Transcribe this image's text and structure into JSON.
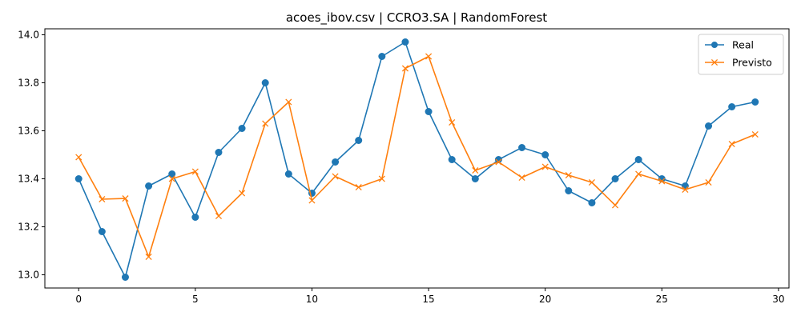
{
  "chart_data": {
    "type": "line",
    "title": "acoes_ibov.csv | CCRO3.SA | RandomForest",
    "xlabel": "",
    "ylabel": "",
    "x": [
      0,
      1,
      2,
      3,
      4,
      5,
      6,
      7,
      8,
      9,
      10,
      11,
      12,
      13,
      14,
      15,
      16,
      17,
      18,
      19,
      20,
      21,
      22,
      23,
      24,
      25,
      26,
      27,
      28,
      29
    ],
    "xlim": [
      -1.45,
      30.45
    ],
    "ylim": [
      12.945,
      14.025
    ],
    "xticks": [
      0,
      5,
      10,
      15,
      20,
      25,
      30
    ],
    "yticks": [
      13.0,
      13.2,
      13.4,
      13.6,
      13.8,
      14.0
    ],
    "xtick_labels": [
      "0",
      "5",
      "10",
      "15",
      "20",
      "25",
      "30"
    ],
    "ytick_labels": [
      "13.0",
      "13.2",
      "13.4",
      "13.6",
      "13.8",
      "14.0"
    ],
    "grid": false,
    "legend_position": "top-right",
    "series": [
      {
        "name": "Real",
        "color": "#1f77b4",
        "marker": "circle",
        "values": [
          13.4,
          13.18,
          12.99,
          13.37,
          13.42,
          13.24,
          13.51,
          13.61,
          13.8,
          13.42,
          13.34,
          13.47,
          13.56,
          13.91,
          13.97,
          13.68,
          13.48,
          13.4,
          13.48,
          13.53,
          13.5,
          13.35,
          13.3,
          13.4,
          13.48,
          13.4,
          13.37,
          13.62,
          13.7,
          13.72
        ]
      },
      {
        "name": "Previsto",
        "color": "#ff7f0e",
        "marker": "x",
        "values": [
          13.49,
          13.315,
          13.318,
          13.075,
          13.4,
          13.43,
          13.245,
          13.34,
          13.63,
          13.72,
          13.31,
          13.41,
          13.365,
          13.4,
          13.86,
          13.91,
          13.635,
          13.435,
          13.47,
          13.405,
          13.45,
          13.415,
          13.385,
          13.29,
          13.42,
          13.39,
          13.355,
          13.385,
          13.545,
          13.585
        ]
      }
    ]
  }
}
